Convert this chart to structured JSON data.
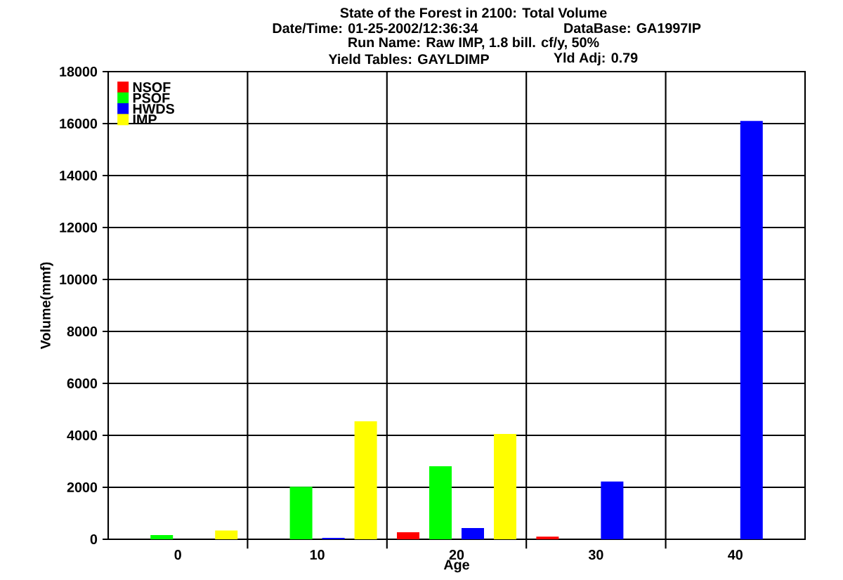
{
  "chart_data": {
    "type": "bar",
    "title": "State of the Forest in 2100: Total Volume",
    "annotations": [
      "Date/Time: 01-25-2002/12:36:34",
      "DataBase: GA1997IP",
      "Run Name: Raw IMP, 1.8 bill. cf/y, 50%",
      "Yield Tables: GAYLDIMP",
      "Yld Adj: 0.79"
    ],
    "xlabel": "Age",
    "ylabel": "Volume(mmf)",
    "categories": [
      "0",
      "10",
      "20",
      "30",
      "40"
    ],
    "series": [
      {
        "name": "NSOF",
        "color": "#ff0000",
        "values": [
          0,
          0,
          270,
          100,
          0
        ]
      },
      {
        "name": "PSOF",
        "color": "#00ff00",
        "values": [
          160,
          2020,
          2810,
          0,
          0
        ]
      },
      {
        "name": "HWDS",
        "color": "#0000ff",
        "values": [
          0,
          50,
          430,
          2220,
          16100
        ]
      },
      {
        "name": "IMP",
        "color": "#ffff00",
        "values": [
          340,
          4540,
          4050,
          0,
          0
        ]
      }
    ],
    "ylim": [
      0,
      18000
    ],
    "yticks": [
      0,
      2000,
      4000,
      6000,
      8000,
      10000,
      12000,
      14000,
      16000,
      18000
    ],
    "grid": true,
    "legend": "top left"
  }
}
